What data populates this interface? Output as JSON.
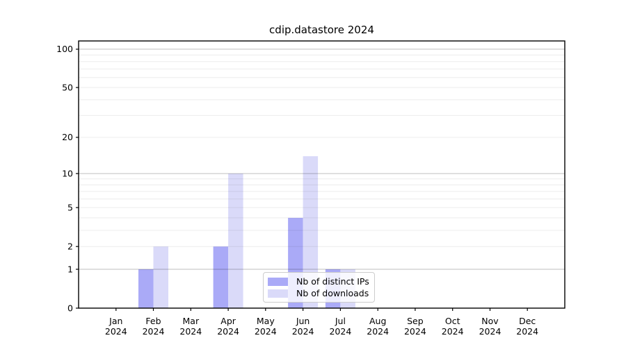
{
  "chart_data": {
    "type": "bar",
    "title": "cdip.datastore 2024",
    "xlabel": "",
    "ylabel": "",
    "categories": [
      "Jan",
      "Feb",
      "Mar",
      "Apr",
      "May",
      "Jun",
      "Jul",
      "Aug",
      "Sep",
      "Oct",
      "Nov",
      "Dec"
    ],
    "category_year": "2024",
    "series": [
      {
        "name": "Nb of distinct IPs",
        "color": "#aaaaf7",
        "values": [
          0,
          1,
          0,
          2,
          0,
          4,
          1,
          0,
          0,
          0,
          0,
          0
        ]
      },
      {
        "name": "Nb of downloads",
        "color": "#dadaf9",
        "values": [
          0,
          2,
          0,
          10,
          0,
          14,
          1,
          0,
          0,
          0,
          0,
          0
        ]
      }
    ],
    "y_scale": "log1p",
    "ylim": [
      0,
      116
    ],
    "y_ticks": [
      0,
      1,
      2,
      5,
      10,
      20,
      50,
      100
    ],
    "y_major_gridlines": [
      1,
      10,
      100
    ],
    "y_minor_gridlines": [
      2,
      3,
      4,
      5,
      6,
      7,
      8,
      9,
      20,
      30,
      40,
      50,
      60,
      70,
      80,
      90
    ],
    "grid": true,
    "legend_position": "lower center",
    "colors": {
      "background": "#ffffff",
      "axis": "#000000",
      "tick_label": "#000000",
      "major_grid": "rgba(0,0,0,0.25)",
      "minor_grid": "rgba(0,0,0,0.075)"
    }
  }
}
